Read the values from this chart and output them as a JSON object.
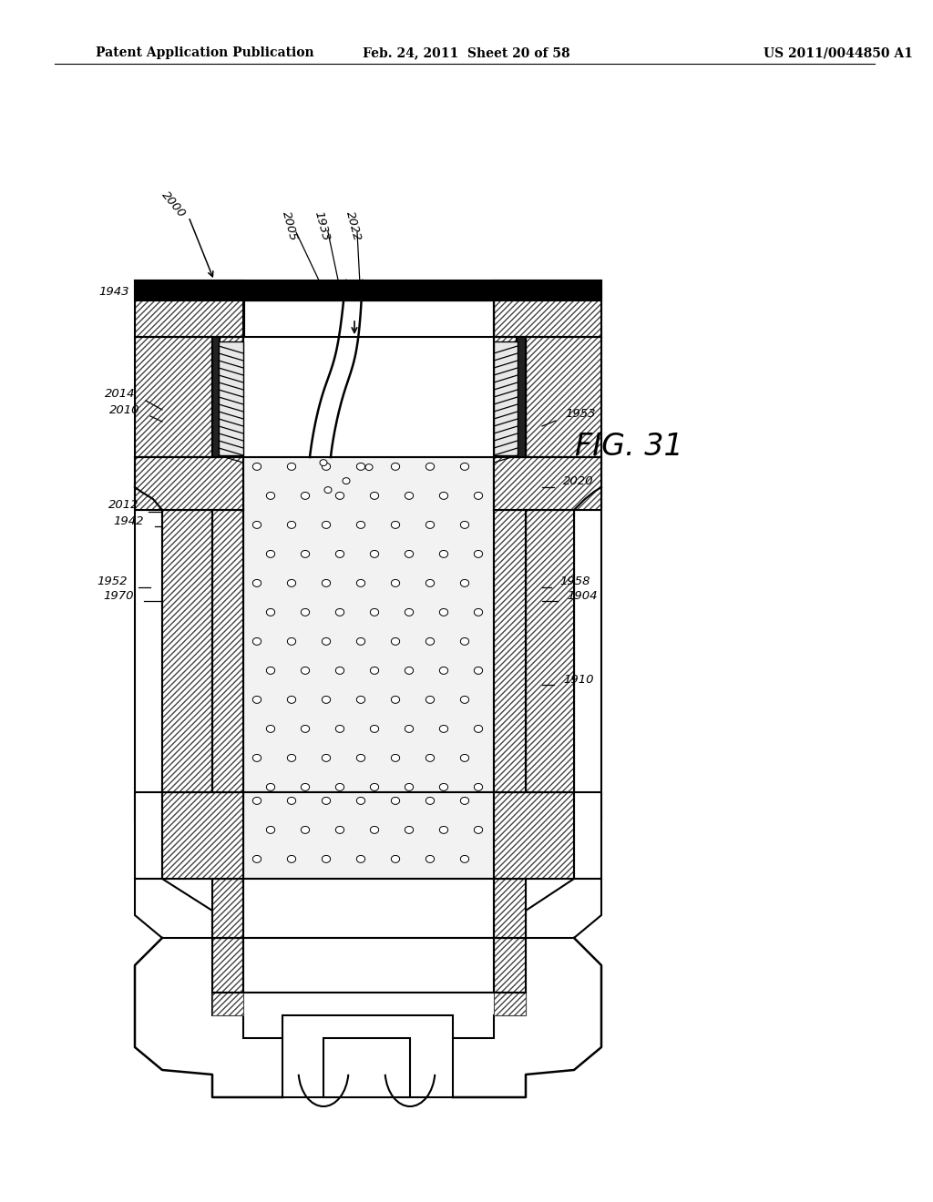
{
  "header_left": "Patent Application Publication",
  "header_mid": "Feb. 24, 2011  Sheet 20 of 58",
  "header_right": "US 2011/0044850 A1",
  "bg_color": "#ffffff",
  "fig_label": "FIG. 31",
  "lw_main": 1.5,
  "hatch_pattern": "/////"
}
